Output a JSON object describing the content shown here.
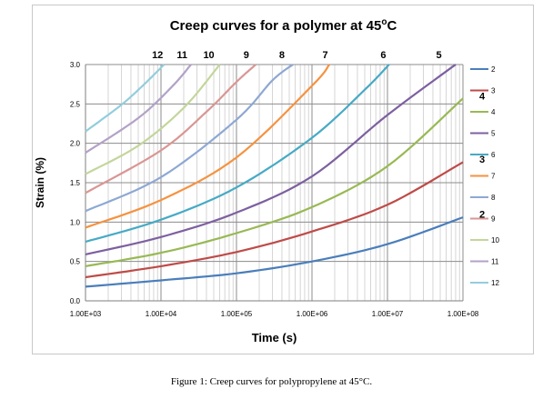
{
  "caption": "Figure 1:  Creep curves for polypropylene at 45°C.",
  "chart_data": {
    "type": "line",
    "title": "Creep curves for a polymer at 45",
    "title_superscript": "o",
    "title_suffix": "C",
    "xlabel": "Time (s)",
    "ylabel": "Strain (%)",
    "x_scale": "log",
    "xlim": [
      1000,
      100000000
    ],
    "ylim": [
      0,
      3.0
    ],
    "x_tick_values": [
      1000,
      10000,
      100000,
      1000000,
      10000000,
      100000000
    ],
    "x_tick_labels": [
      "1.00E+03",
      "1.00E+04",
      "1.00E+05",
      "1.00E+06",
      "1.00E+07",
      "1.00E+08"
    ],
    "y_tick_values": [
      0,
      0.5,
      1.0,
      1.5,
      2.0,
      2.5,
      3.0
    ],
    "y_tick_labels": [
      "0.0",
      "0.5",
      "1.0",
      "1.5",
      "2.0",
      "2.5",
      "3.0"
    ],
    "grid": true,
    "legend_position": "right",
    "series": [
      {
        "name": "2",
        "color": "#4a7ebb",
        "x": [
          1000,
          10000,
          100000,
          1000000,
          10000000,
          100000000
        ],
        "values": [
          0.18,
          0.26,
          0.35,
          0.5,
          0.72,
          1.06
        ]
      },
      {
        "name": "3",
        "color": "#be4b48",
        "x": [
          1000,
          10000,
          100000,
          1000000,
          10000000,
          100000000
        ],
        "values": [
          0.3,
          0.44,
          0.62,
          0.88,
          1.22,
          1.76
        ]
      },
      {
        "name": "4",
        "color": "#98b954",
        "x": [
          1000,
          10000,
          100000,
          1000000,
          10000000,
          100000000
        ],
        "values": [
          0.44,
          0.61,
          0.86,
          1.19,
          1.71,
          2.57
        ]
      },
      {
        "name": "5",
        "color": "#7d60a0",
        "x": [
          1000,
          10000,
          100000,
          1000000,
          10000000,
          80000000
        ],
        "values": [
          0.59,
          0.81,
          1.12,
          1.58,
          2.36,
          3.0
        ]
      },
      {
        "name": "6",
        "color": "#46aac5",
        "x": [
          1000,
          10000,
          100000,
          1000000,
          5000000,
          10500000
        ],
        "values": [
          0.75,
          1.03,
          1.44,
          2.07,
          2.68,
          3.0
        ]
      },
      {
        "name": "7",
        "color": "#f69240",
        "x": [
          1000,
          10000,
          100000,
          1000000,
          1700000
        ],
        "values": [
          0.93,
          1.28,
          1.82,
          2.73,
          3.0
        ]
      },
      {
        "name": "8",
        "color": "#8ea8d4",
        "x": [
          1000,
          10000,
          100000,
          300000,
          560000
        ],
        "values": [
          1.14,
          1.57,
          2.3,
          2.8,
          3.0
        ]
      },
      {
        "name": "9",
        "color": "#d99694",
        "x": [
          1000,
          10000,
          40000,
          100000,
          180000
        ],
        "values": [
          1.37,
          1.91,
          2.4,
          2.78,
          3.0
        ]
      },
      {
        "name": "10",
        "color": "#c3d69b",
        "x": [
          1000,
          5000,
          20000,
          60000
        ],
        "values": [
          1.61,
          1.97,
          2.45,
          3.0
        ]
      },
      {
        "name": "11",
        "color": "#b3a2c7",
        "x": [
          1000,
          5000,
          14000,
          25000
        ],
        "values": [
          1.88,
          2.32,
          2.72,
          3.0
        ]
      },
      {
        "name": "12",
        "color": "#93cddd",
        "x": [
          1000,
          3000,
          6000,
          11000
        ],
        "values": [
          2.15,
          2.49,
          2.75,
          3.0
        ]
      }
    ],
    "annotations": [
      {
        "text": "12",
        "x": 9000
      },
      {
        "text": "11",
        "x": 19000
      },
      {
        "text": "10",
        "x": 43000
      },
      {
        "text": "9",
        "x": 135000
      },
      {
        "text": "8",
        "x": 400000
      },
      {
        "text": "7",
        "x": 1500000
      },
      {
        "text": "6",
        "x": 8800000
      },
      {
        "text": "5",
        "x": 48000000
      },
      {
        "text": "4",
        "y": 2.6
      },
      {
        "text": "3",
        "y": 1.8
      },
      {
        "text": "2",
        "y": 1.1
      }
    ]
  }
}
